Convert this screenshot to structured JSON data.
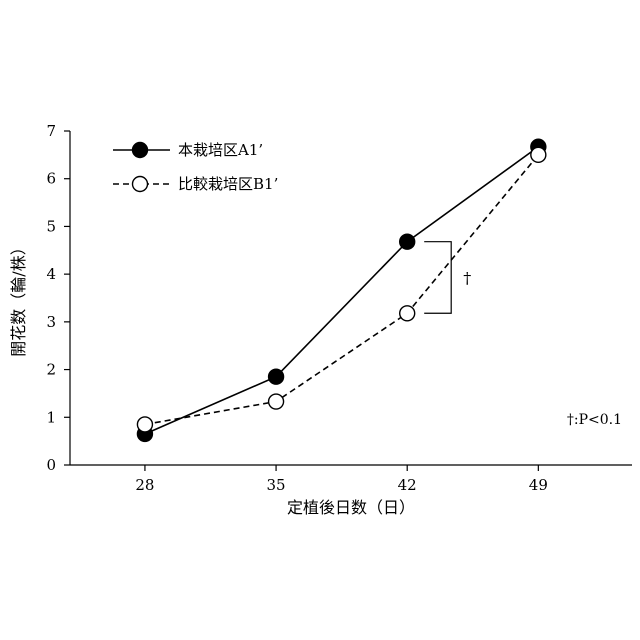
{
  "chart_data": {
    "type": "line",
    "x": [
      28,
      35,
      42,
      49
    ],
    "xlabel": "定植後日数（日）",
    "ylabel": "開花数（輪/株）",
    "ylim": [
      0,
      7
    ],
    "yticks": [
      0,
      1,
      2,
      3,
      4,
      5,
      6,
      7
    ],
    "grid": false,
    "legend_position": "top-left",
    "series": [
      {
        "name": "本栽培区A1’",
        "values": [
          0.65,
          1.85,
          4.68,
          6.67
        ],
        "marker": "filled-circle",
        "line": "solid",
        "color": "#000000"
      },
      {
        "name": "比較栽培区B1’",
        "values": [
          0.85,
          1.33,
          3.18,
          6.5
        ],
        "marker": "open-circle",
        "line": "dashed",
        "color": "#000000"
      }
    ],
    "annotations": {
      "significance_mark": "†",
      "significance_at_x": 42,
      "note": "†:P<0.1"
    }
  }
}
